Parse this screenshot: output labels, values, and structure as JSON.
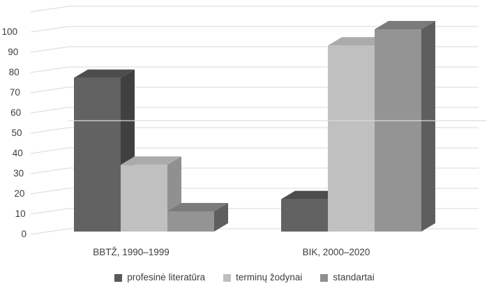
{
  "chart_data": {
    "type": "bar",
    "variant": "3d-column",
    "title": "",
    "categories": [
      "BBTŽ, 1990–1999",
      "BIK, 2000–2020"
    ],
    "series": [
      {
        "name": "profesinė literatūra",
        "values": [
          76,
          16
        ]
      },
      {
        "name": "terminų žodynai",
        "values": [
          33,
          92
        ]
      },
      {
        "name": "standartai",
        "values": [
          10,
          100
        ]
      }
    ],
    "y_axis": {
      "min": 0,
      "max": 110,
      "tick_step": 10,
      "tick_labels": [
        "0",
        "10",
        "20",
        "30",
        "40",
        "50",
        "60",
        "70",
        "80",
        "90",
        "100"
      ]
    },
    "legend": {
      "position": "bottom",
      "items": [
        "profesinė literatūra",
        "terminų žodynai",
        "standartai"
      ]
    },
    "grid": true
  },
  "style": {
    "background": "#ffffff",
    "gridline_color": "#d9d9d9",
    "artifact_line_color": "#dcdcdd",
    "text_color": "#3d3d3d",
    "series_colors": [
      {
        "front": "#626262",
        "top": "#4d4d4d",
        "side": "#404040",
        "legend": "#595959"
      },
      {
        "front": "#c0c0c0",
        "top": "#ababab",
        "side": "#909090",
        "legend": "#bfbfbf"
      },
      {
        "front": "#949494",
        "top": "#7b7b7b",
        "side": "#5e5e5e",
        "legend": "#8f8f8f"
      }
    ]
  }
}
